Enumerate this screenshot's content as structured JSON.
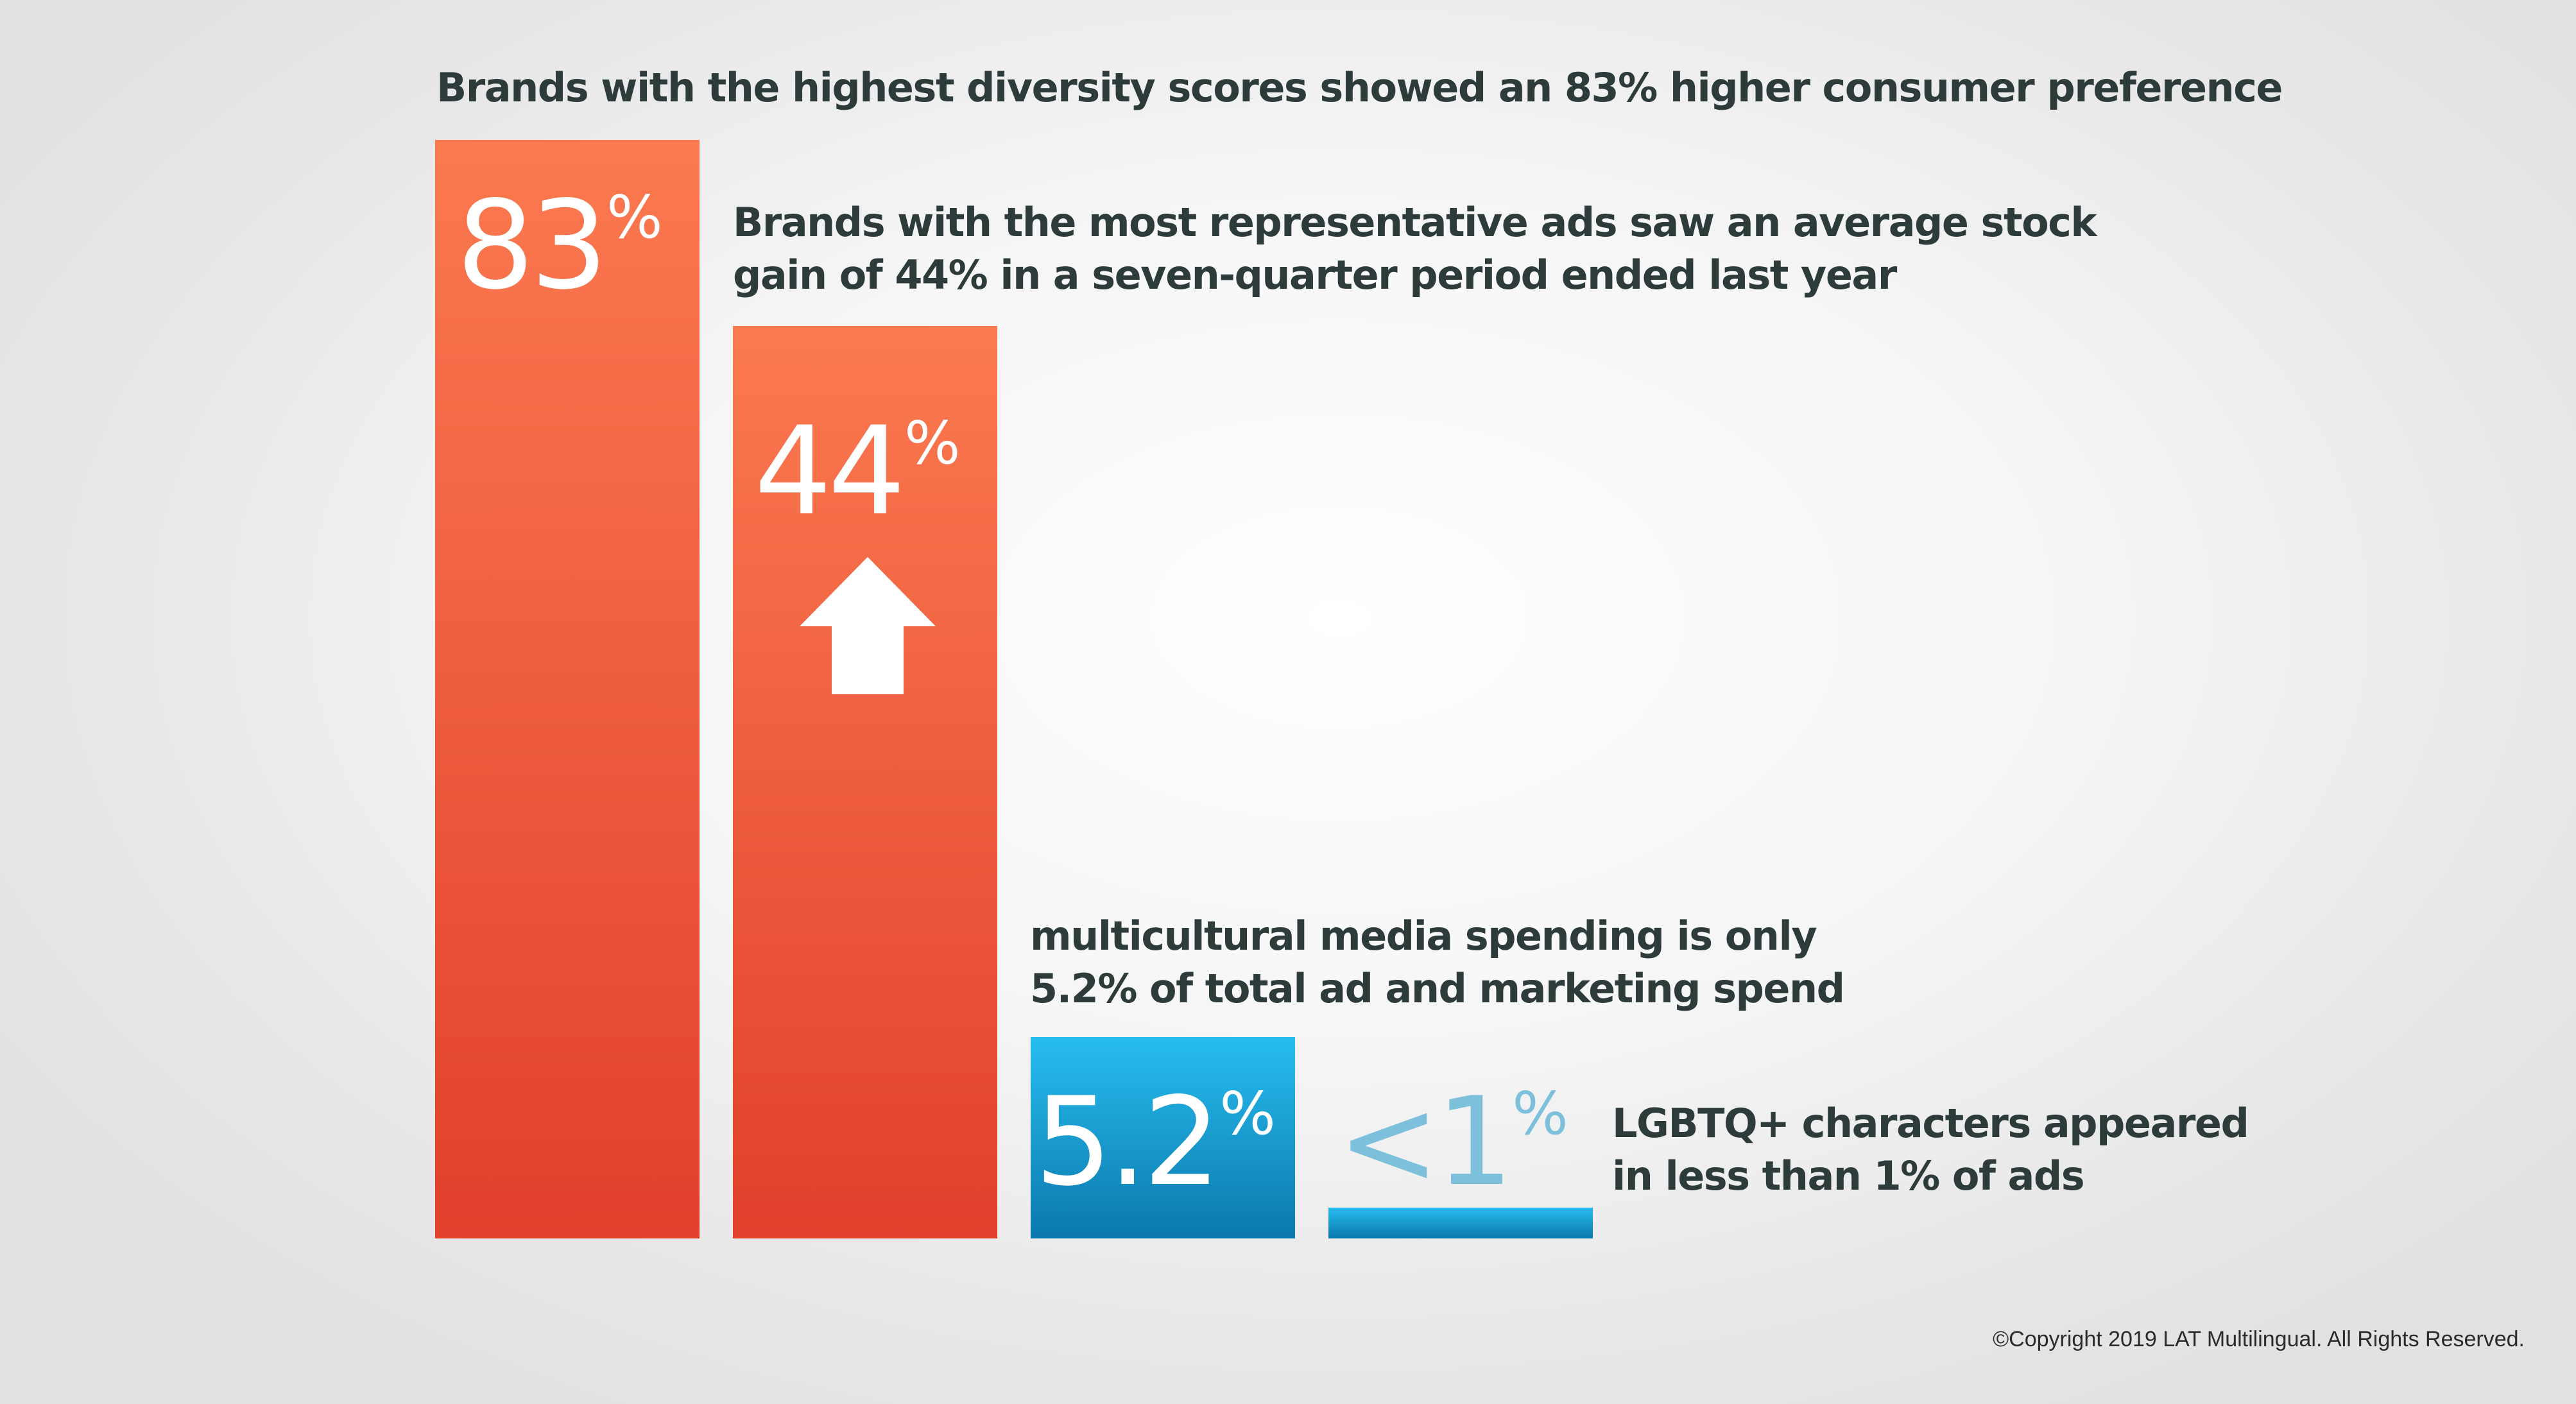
{
  "header": {
    "headline": "Brands with the highest diversity scores showed an 83% higher consumer preference"
  },
  "captions": {
    "stock_line1": "Brands with the most representative ads saw an average stock",
    "stock_line2": "gain of 44% in a seven-quarter period ended last year",
    "media_line1": "multicultural media spending is only",
    "media_line2": "5.2% of total ad and marketing spend",
    "lgbtq_line1": "LGBTQ+ characters appeared",
    "lgbtq_line2": "in less than 1% of ads"
  },
  "footer": {
    "copyright": "©Copyright 2019 LAT Multilingual. All Rights Reserved."
  },
  "colors": {
    "orange_top": "#fb7a50",
    "orange_bottom": "#e1402c",
    "blue_top": "#28bdef",
    "blue_bottom": "#0b78ad",
    "blue_label": "#7dc0dc",
    "text_dark": "#2d3b3b"
  },
  "icons": {
    "arrow": "up-arrow-icon"
  },
  "chart_data": {
    "type": "bar",
    "categories": [
      "83%",
      "44%",
      "5.2%",
      "<1%"
    ],
    "values": [
      83,
      44,
      5.2,
      1
    ],
    "labels": [
      {
        "number": "83",
        "suffix": "%"
      },
      {
        "number": "44",
        "suffix": "%"
      },
      {
        "number": "5.2",
        "suffix": "%"
      },
      {
        "number": "<1",
        "suffix": "%"
      }
    ],
    "title": "",
    "xlabel": "",
    "ylabel": "",
    "ylim": [
      0,
      83
    ],
    "grid": false,
    "legend": "none"
  }
}
